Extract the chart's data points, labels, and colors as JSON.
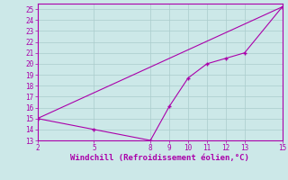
{
  "line1_x": [
    2,
    15
  ],
  "line1_y": [
    15,
    25.2
  ],
  "line2_x": [
    2,
    5,
    8,
    9,
    10,
    11,
    12,
    13,
    15
  ],
  "line2_y": [
    15,
    14,
    13,
    16.1,
    18.7,
    20.0,
    20.5,
    21.0,
    25.2
  ],
  "line_color": "#aa00aa",
  "marker": "P",
  "markersize": 3.5,
  "linewidth": 0.8,
  "xlim": [
    2,
    15
  ],
  "ylim": [
    13,
    25.5
  ],
  "xticks": [
    2,
    5,
    8,
    9,
    10,
    11,
    12,
    13,
    15
  ],
  "yticks": [
    13,
    14,
    15,
    16,
    17,
    18,
    19,
    20,
    21,
    22,
    23,
    24,
    25
  ],
  "xlabel": "Windchill (Refroidissement éolien,°C)",
  "bg_color": "#cce8e8",
  "grid_color": "#aacccc",
  "tick_fontsize": 5.5,
  "xlabel_fontsize": 6.5,
  "label_color": "#aa00aa",
  "spine_color": "#aa00aa"
}
